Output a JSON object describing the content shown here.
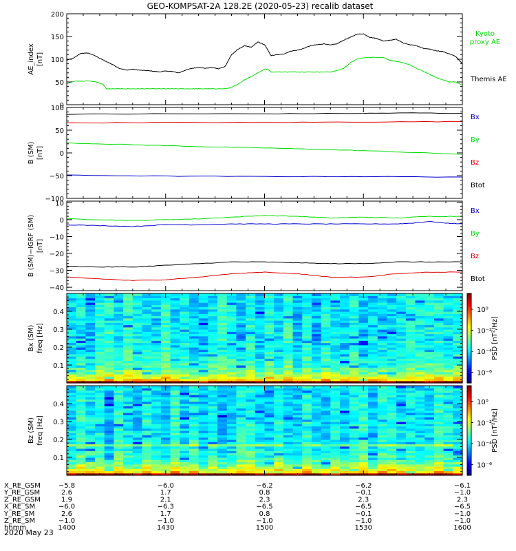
{
  "title": "GEO-KOMPSAT-2A 128.2E (2020-05-23) recalib dataset",
  "date_label": "2020 May 23",
  "chart_data": [
    {
      "type": "line",
      "panel": "ae",
      "ylabel": "AE_index",
      "yunit": "[nT]",
      "ylim": [
        0,
        200
      ],
      "yticks": [
        "0",
        "50",
        "100",
        "150",
        "200"
      ],
      "series": [
        {
          "name": "Themis AE",
          "color": "#000000",
          "x": [
            0,
            2,
            4,
            6,
            8,
            10,
            12,
            14,
            16,
            18,
            20,
            22,
            24,
            26,
            28,
            30,
            32,
            34,
            36,
            38,
            40,
            42,
            44,
            46,
            48,
            50,
            52,
            54,
            56,
            58,
            60,
            62,
            64,
            66,
            68,
            70,
            72,
            74,
            76,
            78,
            80,
            82,
            84,
            86,
            88,
            90,
            92,
            94,
            96,
            98,
            100,
            102,
            104,
            106,
            108,
            110,
            112,
            114,
            116,
            118,
            120
          ],
          "y": [
            98,
            102,
            112,
            114,
            110,
            102,
            95,
            88,
            80,
            76,
            78,
            76,
            75,
            74,
            72,
            74,
            73,
            70,
            76,
            80,
            82,
            80,
            82,
            79,
            84,
            110,
            122,
            130,
            126,
            138,
            132,
            108,
            110,
            112,
            118,
            120,
            124,
            130,
            132,
            134,
            131,
            134,
            142,
            148,
            155,
            156,
            148,
            146,
            140,
            142,
            144,
            136,
            132,
            130,
            124,
            122,
            119,
            117,
            112,
            106,
            90
          ]
        },
        {
          "name": "Kyoto proxy AE",
          "color": "#00dd00",
          "x": [
            0,
            1,
            3,
            5,
            7,
            9,
            11,
            12,
            14,
            16,
            18,
            20,
            22,
            24,
            26,
            28,
            30,
            32,
            34,
            36,
            38,
            40,
            42,
            44,
            46,
            48,
            50,
            52,
            54,
            56,
            58,
            60,
            61,
            62,
            64,
            66,
            68,
            70,
            72,
            74,
            76,
            78,
            80,
            82,
            84,
            86,
            88,
            90,
            92,
            94,
            96,
            98,
            100,
            102,
            104,
            106,
            108,
            110,
            112,
            114,
            116,
            118,
            120
          ],
          "y": [
            45,
            50,
            52,
            52,
            52,
            50,
            45,
            35,
            35,
            35,
            35,
            35,
            35,
            35,
            35,
            35,
            35,
            35,
            35,
            35,
            35,
            35,
            35,
            35,
            35,
            35,
            38,
            45,
            55,
            62,
            70,
            78,
            78,
            72,
            72,
            72,
            72,
            72,
            72,
            72,
            72,
            72,
            72,
            75,
            80,
            92,
            100,
            103,
            104,
            104,
            104,
            98,
            95,
            92,
            88,
            80,
            74,
            67,
            60,
            55,
            50,
            50,
            43
          ]
        }
      ],
      "legend": [
        {
          "text": "Kyoto proxy AE",
          "color": "#00dd00"
        },
        {
          "text": "Themis AE",
          "color": "#000000"
        }
      ]
    },
    {
      "type": "line",
      "panel": "b_sm",
      "ylabel": "B (SM)",
      "yunit": "[nT]",
      "ylim": [
        -100,
        100
      ],
      "yticks": [
        "−100",
        "−50",
        "0",
        "50",
        "100"
      ],
      "series": [
        {
          "name": "Btot",
          "color": "#000000",
          "x": [
            0,
            30,
            60,
            90,
            105,
            120
          ],
          "y": [
            85,
            86,
            86,
            87,
            88,
            87
          ]
        },
        {
          "name": "Bz",
          "color": "#dd0000",
          "x": [
            0,
            30,
            60,
            90,
            120
          ],
          "y": [
            66,
            67,
            67,
            68,
            69
          ]
        },
        {
          "name": "By",
          "color": "#00dd00",
          "x": [
            0,
            15,
            30,
            45,
            60,
            75,
            90,
            105,
            120
          ],
          "y": [
            22,
            19,
            16,
            13,
            11,
            8,
            5,
            1,
            -3
          ]
        },
        {
          "name": "Bx",
          "color": "#0000cc",
          "x": [
            0,
            30,
            60,
            90,
            120
          ],
          "y": [
            -49,
            -51,
            -52,
            -52,
            -53
          ]
        }
      ],
      "legend": [
        {
          "text": "Bx",
          "color": "#0000cc"
        },
        {
          "text": "By",
          "color": "#00dd00"
        },
        {
          "text": "Bz",
          "color": "#dd0000"
        },
        {
          "text": "Btot",
          "color": "#000000"
        }
      ]
    },
    {
      "type": "line",
      "panel": "b_igrf",
      "ylabel": "B (SM)−IGRF (SM)",
      "yunit": "[nT]",
      "ylim": [
        -42,
        11
      ],
      "yticks": [
        "−40",
        "−30",
        "−20",
        "−10",
        "0",
        "10"
      ],
      "ytick_values": [
        -40,
        -30,
        -20,
        -10,
        0,
        10
      ],
      "series": [
        {
          "name": "By",
          "color": "#00dd00",
          "x": [
            0,
            10,
            20,
            30,
            40,
            50,
            60,
            70,
            80,
            90,
            100,
            110,
            120
          ],
          "y": [
            0.5,
            0,
            -0.5,
            0,
            0.5,
            1.5,
            2.5,
            2,
            1,
            1.5,
            1,
            2,
            2
          ]
        },
        {
          "name": "Bx",
          "color": "#0000cc",
          "x": [
            0,
            10,
            20,
            30,
            40,
            50,
            60,
            70,
            80,
            90,
            100,
            105,
            110,
            115,
            120
          ],
          "y": [
            -3,
            -3.5,
            -4,
            -3,
            -3,
            -2.5,
            -2.5,
            -2.5,
            -2.5,
            -2.5,
            -2.5,
            -2,
            -1,
            -2,
            -2.5
          ]
        },
        {
          "name": "Btot",
          "color": "#000000",
          "x": [
            0,
            10,
            20,
            30,
            40,
            50,
            60,
            70,
            80,
            90,
            100,
            110,
            120
          ],
          "y": [
            -27.5,
            -28,
            -28,
            -27,
            -26,
            -25,
            -25,
            -25.5,
            -26,
            -26,
            -25,
            -25,
            -25
          ]
        },
        {
          "name": "Bz",
          "color": "#dd0000",
          "x": [
            0,
            10,
            20,
            30,
            40,
            50,
            60,
            70,
            80,
            90,
            100,
            110,
            120
          ],
          "y": [
            -34,
            -35,
            -36,
            -35.5,
            -34,
            -32,
            -31,
            -32,
            -34,
            -34,
            -32,
            -31,
            -31
          ]
        }
      ],
      "legend": [
        {
          "text": "Bx",
          "color": "#0000cc"
        },
        {
          "text": "By",
          "color": "#00dd00"
        },
        {
          "text": "Bz",
          "color": "#dd0000"
        },
        {
          "text": "Btot",
          "color": "#000000"
        }
      ]
    },
    {
      "type": "heatmap",
      "panel": "spec_bx",
      "ylabel": "Bx (SM)",
      "yunit": "freq [Hz]",
      "ylim": [
        0,
        0.5
      ],
      "yticks": [
        "0.1",
        "0.2",
        "0.3",
        "0.4"
      ],
      "ytick_values": [
        0.1,
        0.2,
        0.3,
        0.4
      ],
      "colorbar_label": "PSD [nT²/Hz]",
      "colorbar_ticks": [
        "10⁰",
        "10⁻²",
        "10⁻⁴",
        "10⁻⁶"
      ],
      "colorbar_range": [
        -7,
        1.5
      ]
    },
    {
      "type": "heatmap",
      "panel": "spec_bz",
      "ylabel": "Bz (SM)",
      "yunit": "freq [Hz]",
      "ylim": [
        0,
        0.5
      ],
      "yticks": [
        "0.1",
        "0.2",
        "0.3",
        "0.4"
      ],
      "ytick_values": [
        0.1,
        0.2,
        0.3,
        0.4
      ],
      "colorbar_label": "PSD [nT²/Hz]",
      "colorbar_ticks": [
        "10⁰",
        "10⁻²",
        "10⁻⁴",
        "10⁻⁶"
      ],
      "colorbar_range": [
        -7,
        1.5
      ]
    }
  ],
  "xaxis": {
    "range_minutes": [
      0,
      120
    ],
    "ticks_minutes": [
      0,
      30,
      60,
      90,
      120
    ],
    "rows": [
      {
        "label": "X_RE_GSM",
        "values": [
          "−5.8",
          "−6.0",
          "−6.2",
          "−6.2",
          "−6.1"
        ]
      },
      {
        "label": "Y_RE_GSM",
        "values": [
          "2.6",
          "1.7",
          "0.8",
          "−0.1",
          "−1.0"
        ]
      },
      {
        "label": "Z_RE_GSM",
        "values": [
          "1.9",
          "2.1",
          "2.3",
          "2.3",
          "2.3"
        ]
      },
      {
        "label": "X_RE_SM",
        "values": [
          "−6.0",
          "−6.3",
          "−6.5",
          "−6.5",
          "−6.5"
        ]
      },
      {
        "label": "Y_RE_SM",
        "values": [
          "2.6",
          "1.7",
          "0.8",
          "−0.1",
          "−1.0"
        ]
      },
      {
        "label": "Z_RE_SM",
        "values": [
          "−1.0",
          "−1.0",
          "−1.0",
          "−1.0",
          "−1.0"
        ]
      },
      {
        "label": "hhmm",
        "values": [
          "1400",
          "1430",
          "1500",
          "1530",
          "1600"
        ]
      }
    ]
  }
}
